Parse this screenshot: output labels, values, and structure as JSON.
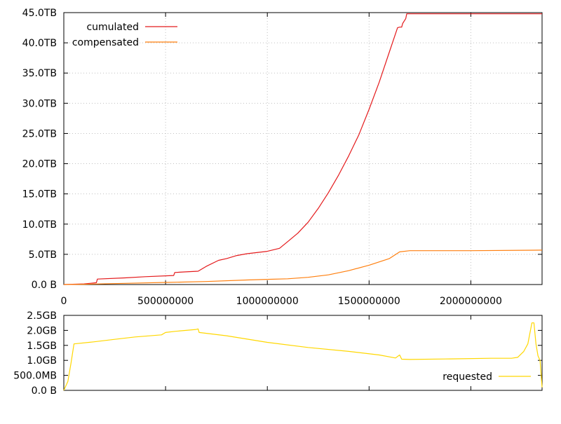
{
  "chart_data": [
    {
      "type": "line",
      "title": "",
      "xlabel": "",
      "ylabel": "",
      "xlim": [
        0,
        2350000000
      ],
      "ylim": [
        0,
        45
      ],
      "x_ticks": [
        0,
        500000000,
        1000000000,
        1500000000,
        2000000000
      ],
      "x_tick_labels": [
        "0",
        "500000000",
        "1000000000",
        "1500000000",
        "2000000000"
      ],
      "y_ticks": [
        0,
        5,
        10,
        15,
        20,
        25,
        30,
        35,
        40,
        45
      ],
      "y_tick_labels": [
        "0.0 B",
        "5.0TB",
        "10.0TB",
        "15.0TB",
        "20.0TB",
        "25.0TB",
        "30.0TB",
        "35.0TB",
        "40.0TB",
        "45.0TB"
      ],
      "grid": true,
      "legend_position": "top-left",
      "series": [
        {
          "name": "cumulated",
          "color": "#e41a1c",
          "x": [
            0,
            100000000,
            160000000,
            165000000,
            300000000,
            400000000,
            540000000,
            545000000,
            600000000,
            660000000,
            700000000,
            760000000,
            800000000,
            850000000,
            900000000,
            1000000000,
            1060000000,
            1100000000,
            1150000000,
            1200000000,
            1250000000,
            1300000000,
            1350000000,
            1400000000,
            1450000000,
            1500000000,
            1550000000,
            1600000000,
            1640000000,
            1650000000,
            1660000000,
            1665000000,
            1680000000,
            1685000000,
            2000000000,
            2350000000
          ],
          "y": [
            0,
            0.1,
            0.3,
            0.9,
            1.1,
            1.3,
            1.5,
            2.0,
            2.1,
            2.2,
            3.0,
            4.0,
            4.3,
            4.8,
            5.1,
            5.5,
            6.0,
            7.1,
            8.5,
            10.3,
            12.6,
            15.2,
            18.1,
            21.3,
            24.8,
            29.0,
            33.5,
            38.5,
            42.5,
            42.6,
            42.6,
            43.2,
            44.0,
            44.8,
            44.8,
            44.8
          ]
        },
        {
          "name": "compensated",
          "color": "#ff7f0e",
          "x": [
            0,
            100000000,
            300000000,
            500000000,
            700000000,
            900000000,
            1100000000,
            1200000000,
            1300000000,
            1400000000,
            1500000000,
            1600000000,
            1650000000,
            1700000000,
            2000000000,
            2350000000
          ],
          "y": [
            0,
            0.05,
            0.2,
            0.35,
            0.5,
            0.75,
            0.95,
            1.2,
            1.6,
            2.3,
            3.2,
            4.3,
            5.4,
            5.6,
            5.6,
            5.7
          ]
        }
      ]
    },
    {
      "type": "line",
      "title": "",
      "xlabel": "",
      "ylabel": "",
      "xlim": [
        0,
        2350000000
      ],
      "ylim": [
        0,
        2.5
      ],
      "y_ticks": [
        0,
        0.5,
        1.0,
        1.5,
        2.0,
        2.5
      ],
      "y_tick_labels": [
        "0.0 B",
        "500.0MB",
        "1.0GB",
        "1.5GB",
        "2.0GB",
        "2.5GB"
      ],
      "grid": false,
      "legend_position": "bottom-right",
      "series": [
        {
          "name": "requested",
          "color": "#ffd700",
          "x": [
            0,
            20000000,
            35000000,
            50000000,
            150000000,
            250000000,
            350000000,
            480000000,
            500000000,
            550000000,
            650000000,
            660000000,
            665000000,
            800000000,
            1000000000,
            1200000000,
            1400000000,
            1550000000,
            1630000000,
            1650000000,
            1660000000,
            1700000000,
            1900000000,
            2100000000,
            2200000000,
            2230000000,
            2260000000,
            2280000000,
            2300000000,
            2310000000,
            2320000000,
            2330000000,
            2340000000,
            2350000000
          ],
          "y": [
            0,
            0.3,
            0.9,
            1.55,
            1.62,
            1.7,
            1.78,
            1.85,
            1.93,
            1.97,
            2.03,
            2.05,
            1.93,
            1.82,
            1.6,
            1.43,
            1.3,
            1.18,
            1.08,
            1.18,
            1.04,
            1.03,
            1.05,
            1.07,
            1.07,
            1.1,
            1.3,
            1.55,
            2.25,
            2.25,
            1.55,
            1.15,
            1.0,
            0.1
          ]
        }
      ]
    }
  ]
}
